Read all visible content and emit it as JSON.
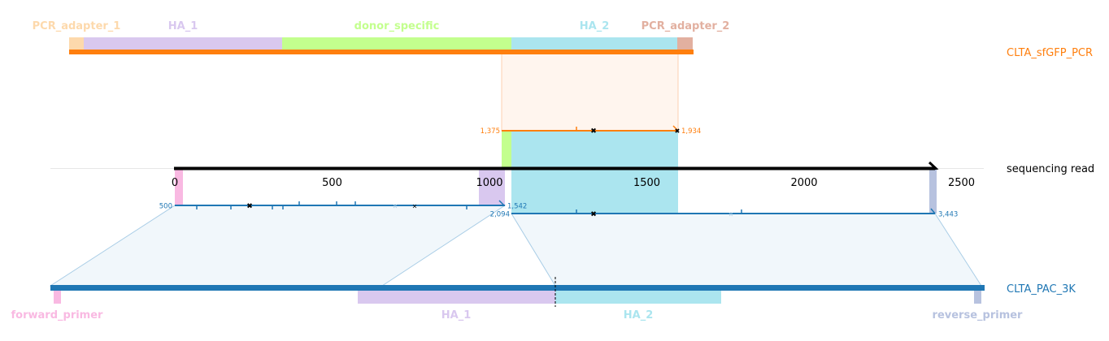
{
  "colors": {
    "pcr": "#ff7f0e",
    "pac": "#1f77b4",
    "read": "#000000",
    "pcr_adapter_1": "#fdd9ac",
    "pcr_adapter_2": "#e2b0a0",
    "ha_1": "#d9c8ef",
    "ha_2": "#abe5ef",
    "donor_specific": "#c3ff8e",
    "forward_primer": "#f9b9e2",
    "reverse_primer": "#b7c2df",
    "pcr_fill": "#fff5ee",
    "pac_fill": "#f1f7fb"
  },
  "tracks": {
    "pcr": "CLTA_sfGFP_PCR",
    "read": "sequencing read",
    "pac": "CLTA_PAC_3K"
  },
  "pcr_features": [
    {
      "name": "PCR_adapter_1",
      "color_key": "pcr_adapter_1"
    },
    {
      "name": "HA_1",
      "color_key": "ha_1"
    },
    {
      "name": "donor_specific",
      "color_key": "donor_specific"
    },
    {
      "name": "HA_2",
      "color_key": "ha_2"
    },
    {
      "name": "PCR_adapter_2",
      "color_key": "pcr_adapter_2"
    }
  ],
  "pac_features": [
    {
      "name": "forward_primer",
      "color_key": "forward_primer"
    },
    {
      "name": "HA_1",
      "color_key": "ha_1"
    },
    {
      "name": "HA_2",
      "color_key": "ha_2"
    },
    {
      "name": "reverse_primer",
      "color_key": "reverse_primer"
    }
  ],
  "read_axis": {
    "ticks": [
      0,
      500,
      1000,
      1500,
      2000,
      2500
    ],
    "range": [
      0,
      2410
    ]
  },
  "alignments": {
    "pcr": {
      "read_start": 1375,
      "read_end": 1934,
      "start_label": "1,375",
      "end_label": "1,934"
    },
    "pac_1": {
      "start_label": "500",
      "end_label": "1,542"
    },
    "pac_2": {
      "start_label": "2,094",
      "end_label": "3,443"
    }
  }
}
